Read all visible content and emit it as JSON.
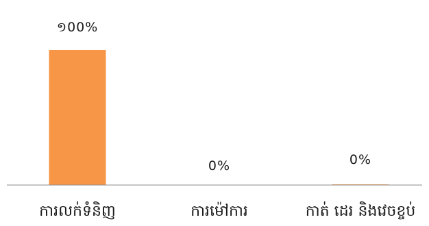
{
  "chart_data": {
    "type": "bar",
    "categories": [
      "ការលក់ទំនិញ",
      "ការម៉ៅការ",
      "កាត់ ដេរ និងវេចខ្ចប់"
    ],
    "values": [
      100,
      0,
      0.5
    ],
    "data_labels": [
      "១00%",
      "0%",
      "0%"
    ],
    "ylim": [
      0,
      100
    ],
    "grid": false,
    "legend": "none",
    "colors": {
      "bar": "#F79646",
      "axis": "#8C8C8C",
      "text": "#1A1A1A"
    }
  }
}
